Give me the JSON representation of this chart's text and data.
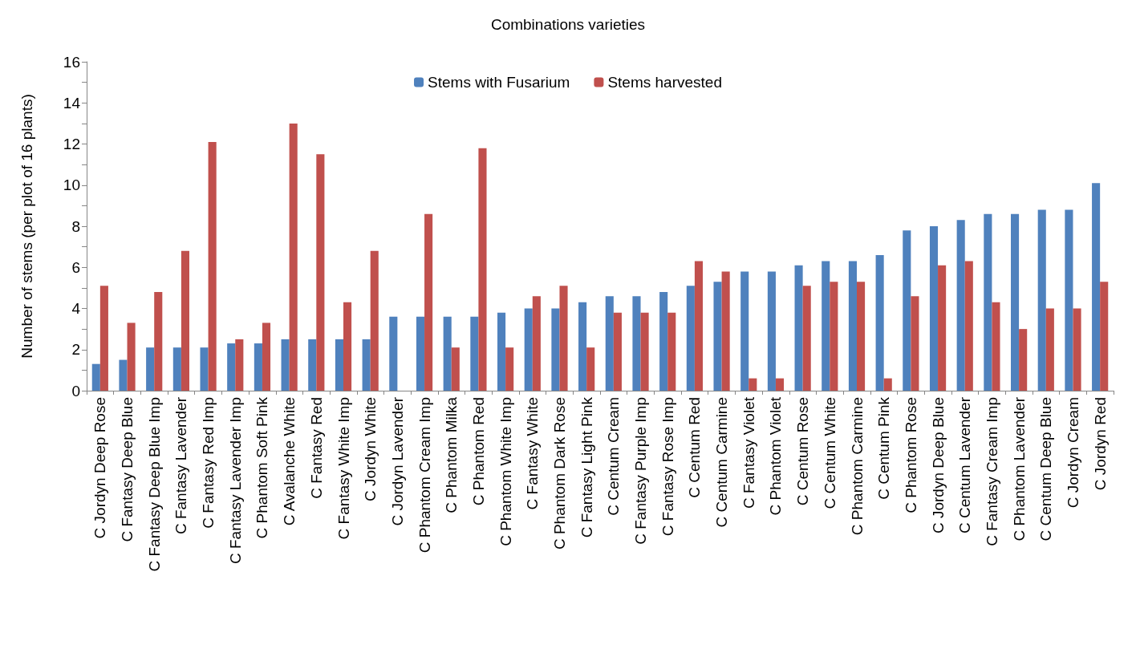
{
  "chart_data": {
    "type": "bar",
    "title": "Combinations varieties",
    "ylabel": "Number of stems (per plot of 16 plants)",
    "categories": [
      "C Jordyn Deep Rose",
      "C Fantasy Deep Blue",
      "C Fantasy Deep Blue Imp",
      "C Fantasy Lavender",
      "C Fantasy Red Imp",
      "C Fantasy Lavender Imp",
      "C Phantom Soft Pink",
      "C Avalanche White",
      "C Fantasy Red",
      "C Fantasy White Imp",
      "C Jordyn White",
      "C Jordyn Lavender",
      "C Phantom Cream Imp",
      "C Phantom Milka",
      "C Phantom Red",
      "C Phantom White Imp",
      "C Fantasy White",
      "C Phantom Dark Rose",
      "C Fantasy Light Pink",
      "C Centum Cream",
      "C Fantasy Purple Imp",
      "C Fantasy Rose Imp",
      "C Centum Red",
      "C Centum Carmine",
      "C Fantasy Violet",
      "C Phantom Violet",
      "C Centum Rose",
      "C Centum White",
      "C Phantom Carmine",
      "C Centum Pink",
      "C Phantom Rose",
      "C Jordyn Deep Blue",
      "C Centum Lavender",
      "C Fantasy Cream Imp",
      "C Phantom Lavender",
      "C Centum Deep Blue",
      "C Jordyn Cream",
      "C Jordyn Red"
    ],
    "series": [
      {
        "name": "Stems with Fusarium",
        "color": "#4f81bd",
        "values": [
          1.3,
          1.5,
          2.1,
          2.1,
          2.1,
          2.3,
          2.3,
          2.5,
          2.5,
          2.5,
          2.5,
          3.6,
          3.6,
          3.6,
          3.6,
          3.8,
          4.0,
          4.0,
          4.3,
          4.6,
          4.6,
          4.8,
          5.1,
          5.3,
          5.8,
          5.8,
          6.1,
          6.3,
          6.3,
          6.6,
          7.8,
          8.0,
          8.3,
          8.6,
          8.6,
          8.8,
          8.8,
          10.1
        ]
      },
      {
        "name": "Stems harvested",
        "color": "#c0504d",
        "values": [
          5.1,
          3.3,
          4.8,
          6.8,
          12.1,
          2.5,
          3.3,
          13.0,
          11.5,
          4.3,
          6.8,
          0,
          8.6,
          2.1,
          11.8,
          2.1,
          4.6,
          5.1,
          2.1,
          3.8,
          3.8,
          3.8,
          6.3,
          5.8,
          0.6,
          0.6,
          5.1,
          5.3,
          5.3,
          0.6,
          4.6,
          6.1,
          6.3,
          4.3,
          3.0,
          4.0,
          4.0,
          5.3
        ]
      }
    ],
    "ylim": [
      0,
      16
    ],
    "yticks": [
      0,
      2,
      4,
      6,
      8,
      10,
      12,
      14,
      16
    ],
    "grid": false,
    "legend": "top"
  }
}
